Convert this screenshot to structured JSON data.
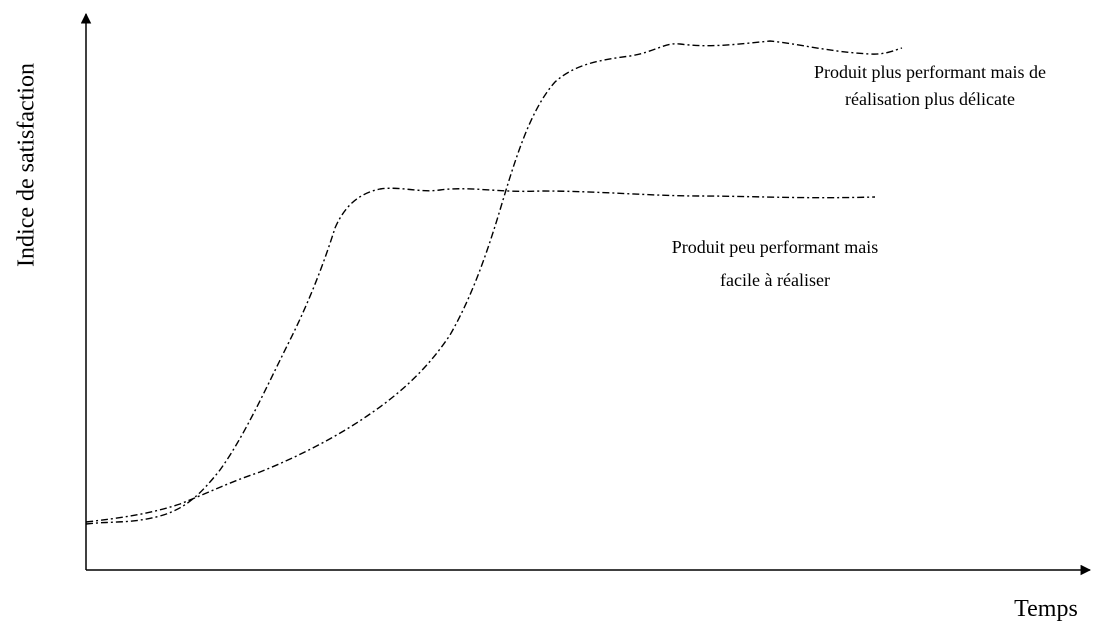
{
  "axes": {
    "y_label": "Indice de satisfaction",
    "x_label": "Temps"
  },
  "annotations": [
    {
      "lines": [
        "Produit plus performant mais de",
        "réalisation plus délicate"
      ]
    },
    {
      "lines": [
        "Produit peu performant mais",
        "facile à réaliser"
      ]
    }
  ]
}
